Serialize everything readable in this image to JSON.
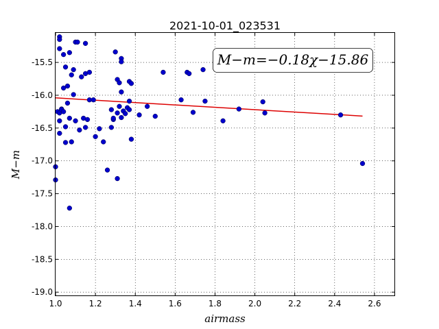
{
  "chart_data": {
    "type": "scatter",
    "title": "2021-10-01_023531",
    "xlabel": "airmass",
    "ylabel": "M−m",
    "xlim": [
      1.0,
      2.7
    ],
    "ylim": [
      -19.05,
      -15.05
    ],
    "xticks": [
      "1.0",
      "1.2",
      "1.4",
      "1.6",
      "1.8",
      "2.0",
      "2.2",
      "2.4",
      "2.6"
    ],
    "yticks": [
      "-19.0",
      "-18.5",
      "-18.0",
      "-17.5",
      "-17.0",
      "-16.5",
      "-16.0",
      "-15.5"
    ],
    "grid": true,
    "annotation": "M−m=−0.18χ−15.86",
    "colors": {
      "points": "#0000cc",
      "fit": "#dd0000"
    },
    "fit_line": {
      "slope": -0.18,
      "intercept": -15.86,
      "x_range": [
        1.0,
        2.54
      ]
    },
    "points": [
      [
        1.0,
        -17.09
      ],
      [
        1.0,
        -17.29
      ],
      [
        1.01,
        -16.25
      ],
      [
        1.02,
        -15.11
      ],
      [
        1.02,
        -15.15
      ],
      [
        1.02,
        -15.29
      ],
      [
        1.02,
        -16.27
      ],
      [
        1.02,
        -16.39
      ],
      [
        1.02,
        -16.58
      ],
      [
        1.03,
        -16.21
      ],
      [
        1.03,
        -16.22
      ],
      [
        1.04,
        -15.89
      ],
      [
        1.04,
        -16.25
      ],
      [
        1.04,
        -15.38
      ],
      [
        1.05,
        -15.57
      ],
      [
        1.05,
        -16.72
      ],
      [
        1.05,
        -16.48
      ],
      [
        1.06,
        -15.86
      ],
      [
        1.06,
        -16.12
      ],
      [
        1.07,
        -15.35
      ],
      [
        1.07,
        -16.35
      ],
      [
        1.07,
        -17.72
      ],
      [
        1.08,
        -15.69
      ],
      [
        1.08,
        -16.71
      ],
      [
        1.09,
        -15.61
      ],
      [
        1.09,
        -15.99
      ],
      [
        1.1,
        -16.39
      ],
      [
        1.1,
        -15.19
      ],
      [
        1.11,
        -15.19
      ],
      [
        1.12,
        -16.53
      ],
      [
        1.13,
        -15.72
      ],
      [
        1.14,
        -16.35
      ],
      [
        1.15,
        -15.21
      ],
      [
        1.15,
        -15.67
      ],
      [
        1.15,
        -16.49
      ],
      [
        1.16,
        -16.37
      ],
      [
        1.17,
        -16.07
      ],
      [
        1.17,
        -15.65
      ],
      [
        1.19,
        -16.07
      ],
      [
        1.2,
        -16.63
      ],
      [
        1.22,
        -16.51
      ],
      [
        1.24,
        -16.71
      ],
      [
        1.26,
        -17.14
      ],
      [
        1.28,
        -16.22
      ],
      [
        1.28,
        -16.49
      ],
      [
        1.29,
        -16.37
      ],
      [
        1.29,
        -16.35
      ],
      [
        1.3,
        -15.34
      ],
      [
        1.31,
        -17.27
      ],
      [
        1.31,
        -15.76
      ],
      [
        1.31,
        -16.27
      ],
      [
        1.32,
        -15.81
      ],
      [
        1.32,
        -16.17
      ],
      [
        1.33,
        -15.95
      ],
      [
        1.33,
        -16.34
      ],
      [
        1.33,
        -15.44
      ],
      [
        1.33,
        -15.49
      ],
      [
        1.34,
        -16.24
      ],
      [
        1.35,
        -16.28
      ],
      [
        1.36,
        -16.19
      ],
      [
        1.37,
        -16.09
      ],
      [
        1.37,
        -16.22
      ],
      [
        1.37,
        -15.79
      ],
      [
        1.38,
        -15.82
      ],
      [
        1.38,
        -16.67
      ],
      [
        1.42,
        -16.3
      ],
      [
        1.46,
        -16.17
      ],
      [
        1.5,
        -16.32
      ],
      [
        1.54,
        -15.65
      ],
      [
        1.63,
        -16.07
      ],
      [
        1.66,
        -15.65
      ],
      [
        1.67,
        -15.67
      ],
      [
        1.69,
        -16.26
      ],
      [
        1.74,
        -15.61
      ],
      [
        1.75,
        -16.09
      ],
      [
        1.84,
        -16.39
      ],
      [
        1.92,
        -16.21
      ],
      [
        2.04,
        -16.1
      ],
      [
        2.05,
        -16.27
      ],
      [
        2.43,
        -16.3
      ],
      [
        2.54,
        -17.04
      ]
    ]
  }
}
